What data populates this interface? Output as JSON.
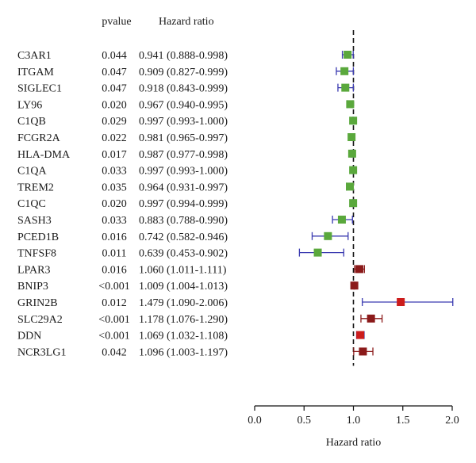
{
  "chart_data": {
    "type": "forest",
    "title": "",
    "column_headers": {
      "pvalue": "pvalue",
      "hr": "Hazard ratio"
    },
    "xlabel": "Hazard ratio",
    "xlim": [
      0.0,
      2.0
    ],
    "xticks": [
      0.0,
      0.5,
      1.0,
      1.5,
      2.0
    ],
    "xtick_labels": [
      "0.0",
      "0.5",
      "1.0",
      "1.5",
      "2.0"
    ],
    "reference_line": 1.0,
    "colors": {
      "protective": "#5aa83c",
      "risk_dark": "#8b1a1a",
      "risk_bright": "#cc1c1c",
      "whisker": "#3a3ab0",
      "text": "#1a1a1a"
    },
    "rows": [
      {
        "gene": "C3AR1",
        "pvalue": "0.044",
        "hr_text": "0.941 (0.888-0.998)",
        "hr": 0.941,
        "lower": 0.888,
        "upper": 0.998,
        "color": "#5aa83c"
      },
      {
        "gene": "ITGAM",
        "pvalue": "0.047",
        "hr_text": "0.909 (0.827-0.999)",
        "hr": 0.909,
        "lower": 0.827,
        "upper": 0.999,
        "color": "#5aa83c"
      },
      {
        "gene": "SIGLEC1",
        "pvalue": "0.047",
        "hr_text": "0.918 (0.843-0.999)",
        "hr": 0.918,
        "lower": 0.843,
        "upper": 0.999,
        "color": "#5aa83c"
      },
      {
        "gene": "LY96",
        "pvalue": "0.020",
        "hr_text": "0.967 (0.940-0.995)",
        "hr": 0.967,
        "lower": 0.94,
        "upper": 0.995,
        "color": "#5aa83c"
      },
      {
        "gene": "C1QB",
        "pvalue": "0.029",
        "hr_text": "0.997 (0.993-1.000)",
        "hr": 0.997,
        "lower": 0.993,
        "upper": 1.0,
        "color": "#5aa83c"
      },
      {
        "gene": "FCGR2A",
        "pvalue": "0.022",
        "hr_text": "0.981 (0.965-0.997)",
        "hr": 0.981,
        "lower": 0.965,
        "upper": 0.997,
        "color": "#5aa83c"
      },
      {
        "gene": "HLA-DMA",
        "pvalue": "0.017",
        "hr_text": "0.987 (0.977-0.998)",
        "hr": 0.987,
        "lower": 0.977,
        "upper": 0.998,
        "color": "#5aa83c"
      },
      {
        "gene": "C1QA",
        "pvalue": "0.033",
        "hr_text": "0.997 (0.993-1.000)",
        "hr": 0.997,
        "lower": 0.993,
        "upper": 1.0,
        "color": "#5aa83c"
      },
      {
        "gene": "TREM2",
        "pvalue": "0.035",
        "hr_text": "0.964 (0.931-0.997)",
        "hr": 0.964,
        "lower": 0.931,
        "upper": 0.997,
        "color": "#5aa83c"
      },
      {
        "gene": "C1QC",
        "pvalue": "0.020",
        "hr_text": "0.997 (0.994-0.999)",
        "hr": 0.997,
        "lower": 0.994,
        "upper": 0.999,
        "color": "#5aa83c"
      },
      {
        "gene": "SASH3",
        "pvalue": "0.033",
        "hr_text": "0.883 (0.788-0.990)",
        "hr": 0.883,
        "lower": 0.788,
        "upper": 0.99,
        "color": "#5aa83c"
      },
      {
        "gene": "PCED1B",
        "pvalue": "0.016",
        "hr_text": "0.742 (0.582-0.946)",
        "hr": 0.742,
        "lower": 0.582,
        "upper": 0.946,
        "color": "#5aa83c"
      },
      {
        "gene": "TNFSF8",
        "pvalue": "0.011",
        "hr_text": "0.639 (0.453-0.902)",
        "hr": 0.639,
        "lower": 0.453,
        "upper": 0.902,
        "color": "#5aa83c"
      },
      {
        "gene": "LPAR3",
        "pvalue": "0.016",
        "hr_text": "1.060 (1.011-1.111)",
        "hr": 1.06,
        "lower": 1.011,
        "upper": 1.111,
        "color": "#8b1a1a"
      },
      {
        "gene": "BNIP3",
        "pvalue": "<0.001",
        "hr_text": "1.009 (1.004-1.013)",
        "hr": 1.009,
        "lower": 1.004,
        "upper": 1.013,
        "color": "#8b1a1a"
      },
      {
        "gene": "GRIN2B",
        "pvalue": "0.012",
        "hr_text": "1.479 (1.090-2.006)",
        "hr": 1.479,
        "lower": 1.09,
        "upper": 2.006,
        "color": "#cc1c1c"
      },
      {
        "gene": "SLC29A2",
        "pvalue": "<0.001",
        "hr_text": "1.178 (1.076-1.290)",
        "hr": 1.178,
        "lower": 1.076,
        "upper": 1.29,
        "color": "#8b1a1a"
      },
      {
        "gene": "DDN",
        "pvalue": "<0.001",
        "hr_text": "1.069 (1.032-1.108)",
        "hr": 1.069,
        "lower": 1.032,
        "upper": 1.108,
        "color": "#cc1c1c"
      },
      {
        "gene": "NCR3LG1",
        "pvalue": "0.042",
        "hr_text": "1.096 (1.003-1.197)",
        "hr": 1.096,
        "lower": 1.003,
        "upper": 1.197,
        "color": "#8b1a1a"
      }
    ]
  }
}
